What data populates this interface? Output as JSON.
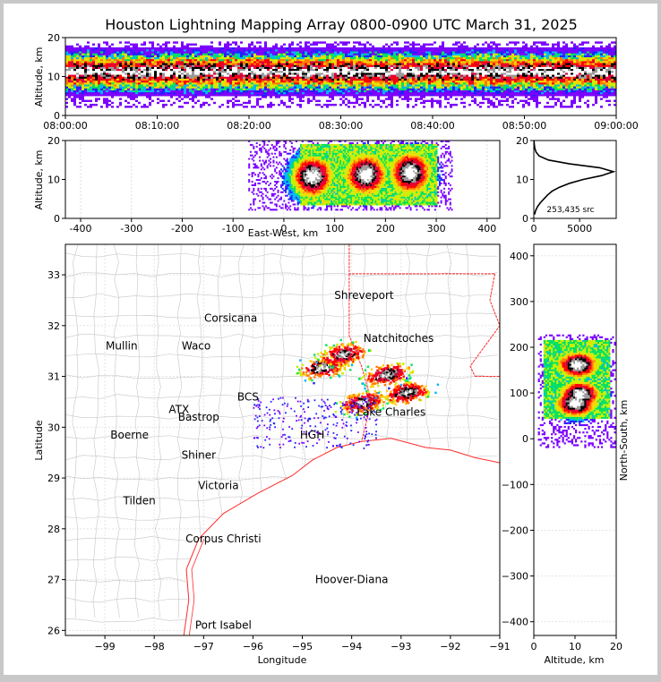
{
  "title": "Houston Lightning Mapping Array 0800-0900 UTC March 31, 2025",
  "chart_data": [
    {
      "panel": "altitude-time",
      "type": "heatmap",
      "ylabel": "Altitude, km",
      "xlabel": "",
      "x_tick_labels": [
        "08:00:00",
        "08:10:00",
        "08:20:00",
        "08:30:00",
        "08:40:00",
        "08:50:00",
        "09:00:00"
      ],
      "ylim": [
        0,
        20
      ],
      "y_ticks": [
        0,
        10,
        20
      ],
      "band_center_km": 11,
      "band_halfwidth_km": 5
    },
    {
      "panel": "altitude-east-west",
      "type": "heatmap",
      "xlabel": "East-West, km",
      "ylabel": "Altitude, km",
      "xlim": [
        -430,
        425
      ],
      "x_ticks": [
        -400,
        -300,
        -200,
        -100,
        0,
        100,
        200,
        300,
        400
      ],
      "ylim": [
        0,
        20
      ],
      "y_ticks": [
        0,
        10,
        20
      ],
      "cells": [
        {
          "x": 55,
          "alt": 10.5
        },
        {
          "x": 160,
          "alt": 11
        },
        {
          "x": 248,
          "alt": 11.5
        }
      ]
    },
    {
      "panel": "altitude-histogram",
      "type": "line",
      "xlim": [
        0,
        9000
      ],
      "x_ticks": [
        0,
        5000
      ],
      "ylim": [
        0,
        20
      ],
      "y_ticks": [
        0,
        10,
        20
      ],
      "annotation": "253,435 src",
      "peak_alt_km": 12,
      "peak_count": 8700,
      "profile_alt": [
        1,
        2,
        3,
        4,
        5,
        6,
        7,
        8,
        9,
        10,
        11,
        12,
        13,
        14,
        15,
        16,
        17,
        18,
        19,
        20
      ],
      "profile_count": [
        80,
        200,
        400,
        700,
        1100,
        1500,
        2000,
        2800,
        3900,
        5400,
        7400,
        8700,
        7200,
        3900,
        1600,
        600,
        250,
        110,
        50,
        20
      ]
    },
    {
      "panel": "plan-view-map",
      "type": "scatter",
      "xlabel": "Longitude",
      "ylabel": "Latitude",
      "xlim": [
        -99.8,
        -91.0
      ],
      "x_ticks": [
        -99,
        -98,
        -97,
        -96,
        -95,
        -94,
        -93,
        -92,
        -91
      ],
      "ylim": [
        25.9,
        33.6
      ],
      "y_ticks": [
        26,
        27,
        28,
        29,
        30,
        31,
        32,
        33
      ],
      "storm_cells": [
        {
          "lon": -94.6,
          "lat": 31.2
        },
        {
          "lon": -94.2,
          "lat": 31.45
        },
        {
          "lon": -93.8,
          "lat": 30.5
        },
        {
          "lon": -92.9,
          "lat": 30.7
        },
        {
          "lon": -93.3,
          "lat": 31.05
        }
      ],
      "cities": [
        {
          "name": "Shreveport",
          "lon": -93.75,
          "lat": 32.6,
          "color": "#000000"
        },
        {
          "name": "Corsicana",
          "lon": -96.45,
          "lat": 32.15,
          "color": "#000000"
        },
        {
          "name": "Mullin",
          "lon": -98.66,
          "lat": 31.6,
          "color": "#f08a3c"
        },
        {
          "name": "Waco",
          "lon": -97.15,
          "lat": 31.6,
          "color": "#000000"
        },
        {
          "name": "Natchitoches",
          "lon": -93.05,
          "lat": 31.75,
          "color": "#000000"
        },
        {
          "name": "BCS",
          "lon": -96.1,
          "lat": 30.6,
          "color": "#000000"
        },
        {
          "name": "ATX",
          "lon": -97.5,
          "lat": 30.35,
          "color": "#f08a3c"
        },
        {
          "name": "Bastrop",
          "lon": -97.1,
          "lat": 30.2,
          "color": "#000000"
        },
        {
          "name": "Lake Charles",
          "lon": -93.2,
          "lat": 30.3,
          "color": "#000000"
        },
        {
          "name": "Boerne",
          "lon": -98.5,
          "lat": 29.85,
          "color": "#000000"
        },
        {
          "name": "HGH",
          "lon": -94.8,
          "lat": 29.85,
          "color": "#d4b400"
        },
        {
          "name": "Shiner",
          "lon": -97.1,
          "lat": 29.45,
          "color": "#000000"
        },
        {
          "name": "Victoria",
          "lon": -96.7,
          "lat": 28.85,
          "color": "#000000"
        },
        {
          "name": "Tilden",
          "lon": -98.3,
          "lat": 28.55,
          "color": "#000000"
        },
        {
          "name": "Corpus Christi",
          "lon": -96.6,
          "lat": 27.8,
          "color": "#000000"
        },
        {
          "name": "Hoover-Diana",
          "lon": -94.0,
          "lat": 27.0,
          "color": "#1a2ad6"
        },
        {
          "name": "Port Isabel",
          "lon": -96.6,
          "lat": 26.1,
          "color": "#000000"
        }
      ]
    },
    {
      "panel": "north-south-altitude",
      "type": "heatmap",
      "xlabel": "Altitude, km",
      "ylabel": "North-South, km",
      "xlim": [
        0,
        20
      ],
      "x_ticks": [
        0,
        10,
        20
      ],
      "ylim": [
        -430,
        425
      ],
      "y_ticks": [
        -400,
        -300,
        -200,
        -100,
        0,
        100,
        200,
        300,
        400
      ],
      "cells": [
        {
          "alt": 10.5,
          "ns": 160
        },
        {
          "alt": 11,
          "ns": 95
        },
        {
          "alt": 10,
          "ns": 75
        }
      ]
    }
  ],
  "colors": {
    "scale": [
      "#7a00ff",
      "#2020ff",
      "#00b4ff",
      "#00e060",
      "#c8f000",
      "#ffd000",
      "#ff7a00",
      "#ff0000",
      "#e0003a",
      "#000000",
      "#9a9a9a",
      "#ffffff"
    ],
    "state_line": "#ff2a2a",
    "county_line": "#c6c6c6"
  }
}
